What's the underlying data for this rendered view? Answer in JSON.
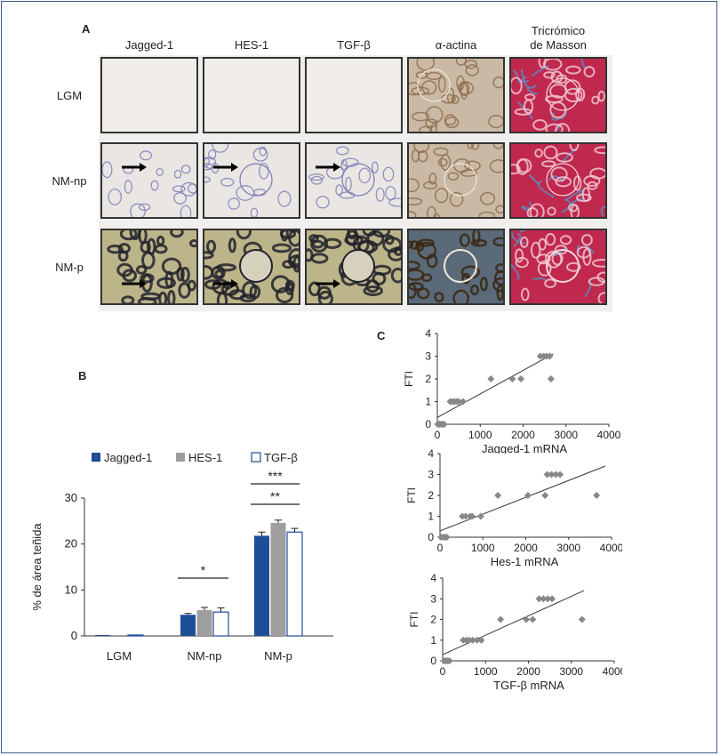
{
  "panels": {
    "a": "A",
    "b": "B",
    "c": "C"
  },
  "panel_a": {
    "columns": [
      "Jagged-1",
      "HES-1",
      "TGF-β",
      "α-actina",
      "Tricrómico de Masson"
    ],
    "columns_lines": [
      [
        "Jagged-1"
      ],
      [
        "HES-1"
      ],
      [
        "TGF-β"
      ],
      [
        "α-actina"
      ],
      [
        "Tricrómico",
        "de Masson"
      ]
    ],
    "rows": [
      "LGM",
      "NM-np",
      "NM-p"
    ]
  },
  "panel_b": {
    "legend": [
      "Jagged-1",
      "HES-1",
      "TGF-β"
    ],
    "ylabel": "% de área teñida",
    "significance": [
      "*",
      "***",
      "**"
    ]
  },
  "chart_data": [
    {
      "type": "bar",
      "categories": [
        "LGM",
        "NM-np",
        "NM-p"
      ],
      "series": [
        {
          "name": "Jagged-1",
          "values": [
            0.2,
            4.6,
            21.8
          ],
          "errors": [
            0.1,
            0.3,
            0.8
          ],
          "color": "#1f4e99"
        },
        {
          "name": "HES-1",
          "values": [
            0.2,
            5.6,
            24.6
          ],
          "errors": [
            0.1,
            0.6,
            0.6
          ],
          "color": "#9e9e9e"
        },
        {
          "name": "TGF-β",
          "values": [
            0.2,
            5.2,
            22.6
          ],
          "errors": [
            0.1,
            0.9,
            0.8
          ],
          "color": "#ffffff"
        }
      ],
      "ylabel": "% de área teñida",
      "ylim": [
        0,
        30
      ],
      "yticks": [
        0,
        10,
        20,
        30
      ],
      "legend_position": "top"
    },
    {
      "type": "scatter",
      "xlabel": "Jagged-1 mRNA",
      "ylabel": "FTI",
      "xlim": [
        0,
        4000
      ],
      "ylim": [
        0,
        4
      ],
      "xticks": [
        0,
        1000,
        2000,
        3000,
        4000
      ],
      "yticks": [
        0,
        1,
        2,
        3,
        4
      ],
      "points": [
        [
          10,
          0
        ],
        [
          30,
          0
        ],
        [
          60,
          0
        ],
        [
          100,
          0
        ],
        [
          130,
          0
        ],
        [
          160,
          0
        ],
        [
          300,
          1
        ],
        [
          350,
          1
        ],
        [
          400,
          1
        ],
        [
          450,
          1
        ],
        [
          500,
          1
        ],
        [
          600,
          1
        ],
        [
          1250,
          2
        ],
        [
          1750,
          2
        ],
        [
          1950,
          2
        ],
        [
          2400,
          3
        ],
        [
          2480,
          3
        ],
        [
          2550,
          3
        ],
        [
          2620,
          3
        ],
        [
          2650,
          2
        ]
      ],
      "trendline": [
        [
          0,
          0.3
        ],
        [
          2700,
          3.1
        ]
      ],
      "color": "#888888"
    },
    {
      "type": "scatter",
      "xlabel": "Hes-1 mRNA",
      "ylabel": "FTI",
      "xlim": [
        0,
        4000
      ],
      "ylim": [
        0,
        4
      ],
      "xticks": [
        0,
        1000,
        2000,
        3000,
        4000
      ],
      "yticks": [
        0,
        1,
        2,
        3,
        4
      ],
      "points": [
        [
          30,
          0
        ],
        [
          80,
          0
        ],
        [
          120,
          0
        ],
        [
          160,
          0
        ],
        [
          520,
          1
        ],
        [
          600,
          1
        ],
        [
          700,
          1
        ],
        [
          750,
          1
        ],
        [
          950,
          1
        ],
        [
          1350,
          2
        ],
        [
          2050,
          2
        ],
        [
          2450,
          2
        ],
        [
          2500,
          3
        ],
        [
          2600,
          3
        ],
        [
          2700,
          3
        ],
        [
          2800,
          3
        ],
        [
          3650,
          2
        ]
      ],
      "trendline": [
        [
          0,
          0.3
        ],
        [
          3850,
          3.4
        ]
      ],
      "color": "#888888"
    },
    {
      "type": "scatter",
      "xlabel": "TGF-β mRNA",
      "ylabel": "FTI",
      "xlim": [
        0,
        4000
      ],
      "ylim": [
        0,
        4
      ],
      "xticks": [
        0,
        1000,
        2000,
        3000,
        4000
      ],
      "yticks": [
        0,
        1,
        2,
        3,
        4
      ],
      "points": [
        [
          40,
          0
        ],
        [
          80,
          0
        ],
        [
          120,
          0
        ],
        [
          160,
          0
        ],
        [
          480,
          1
        ],
        [
          550,
          1
        ],
        [
          620,
          1
        ],
        [
          700,
          1
        ],
        [
          800,
          1
        ],
        [
          900,
          1
        ],
        [
          1350,
          2
        ],
        [
          1950,
          2
        ],
        [
          2100,
          2
        ],
        [
          2250,
          3
        ],
        [
          2350,
          3
        ],
        [
          2450,
          3
        ],
        [
          2550,
          3
        ],
        [
          3250,
          2
        ]
      ],
      "trendline": [
        [
          0,
          0.3
        ],
        [
          3300,
          3.4
        ]
      ],
      "color": "#888888"
    }
  ]
}
